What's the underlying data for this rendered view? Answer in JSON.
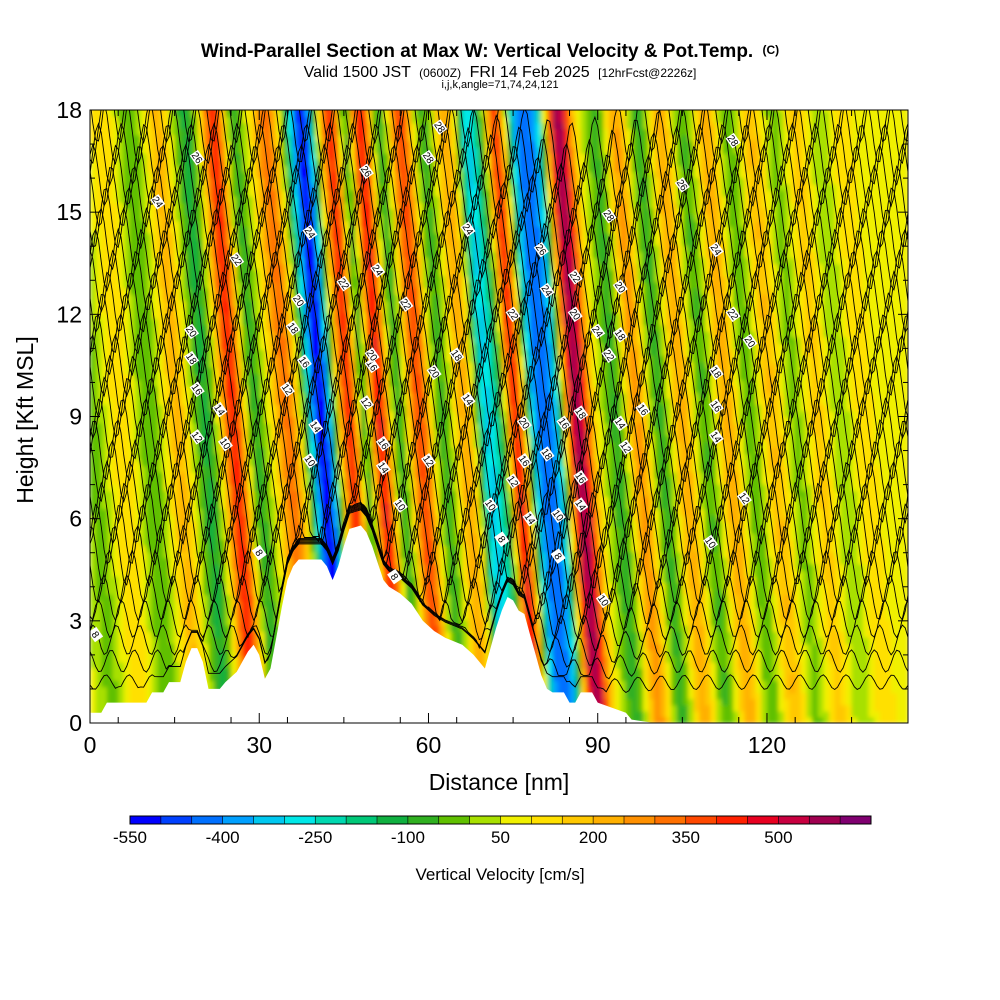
{
  "title": {
    "main": "Wind-Parallel Section at Max W: Vertical Velocity & Pot.Temp.",
    "main_units": "(C)",
    "valid_prefix": "Valid 1500 JST",
    "valid_utc": "(0600Z)",
    "valid_date": "FRI 14 Feb 2025",
    "forecast": "[12hrFcst@2226z]",
    "indices": "i,j,k,angle=71,74,24,121"
  },
  "chart_data": {
    "type": "heatmap",
    "xlabel": "Distance [nm]",
    "ylabel": "Height [Kft MSL]",
    "xlim": [
      0,
      145
    ],
    "ylim": [
      0,
      18
    ],
    "x_ticks": [
      0,
      30,
      60,
      90,
      120
    ],
    "y_ticks": [
      0,
      3,
      6,
      9,
      12,
      15,
      18
    ],
    "grid": false,
    "colorbar": {
      "label": "Vertical Velocity [cm/s]",
      "placement": "bottom",
      "min": -550,
      "max": 650,
      "step": 50,
      "tick_labels": [
        -550,
        -400,
        -250,
        -100,
        50,
        200,
        350,
        500
      ],
      "colors": [
        "#0000ff",
        "#0040ff",
        "#0070ff",
        "#00a0ff",
        "#00c8f0",
        "#00e8e8",
        "#00d8b0",
        "#00c878",
        "#10b040",
        "#30b020",
        "#60c000",
        "#a8e000",
        "#f0f000",
        "#ffe000",
        "#ffc800",
        "#ffb000",
        "#ff9000",
        "#ff7000",
        "#ff4800",
        "#ff2000",
        "#e80020",
        "#c80040",
        "#a00050",
        "#800070"
      ]
    },
    "theta_contours": {
      "field": "Potential temperature (C)",
      "levels": [
        8,
        10,
        12,
        14,
        16,
        18,
        20,
        22,
        24,
        26,
        28
      ],
      "labels": [
        {
          "value": "8",
          "x": 1,
          "y": 2.6
        },
        {
          "value": "8",
          "x": 30,
          "y": 5.0
        },
        {
          "value": "8",
          "x": 54,
          "y": 4.3
        },
        {
          "value": "8",
          "x": 73,
          "y": 5.4
        },
        {
          "value": "8",
          "x": 83,
          "y": 4.9
        },
        {
          "value": "10",
          "x": 24,
          "y": 8.2
        },
        {
          "value": "10",
          "x": 39,
          "y": 7.7
        },
        {
          "value": "10",
          "x": 55,
          "y": 6.4
        },
        {
          "value": "10",
          "x": 71,
          "y": 6.4
        },
        {
          "value": "10",
          "x": 83,
          "y": 6.1
        },
        {
          "value": "10",
          "x": 91,
          "y": 3.6
        },
        {
          "value": "10",
          "x": 110,
          "y": 5.3
        },
        {
          "value": "12",
          "x": 19,
          "y": 8.4
        },
        {
          "value": "12",
          "x": 35,
          "y": 9.8
        },
        {
          "value": "12",
          "x": 49,
          "y": 9.4
        },
        {
          "value": "12",
          "x": 60,
          "y": 7.7
        },
        {
          "value": "12",
          "x": 75,
          "y": 7.1
        },
        {
          "value": "12",
          "x": 95,
          "y": 8.1
        },
        {
          "value": "12",
          "x": 116,
          "y": 6.6
        },
        {
          "value": "14",
          "x": 23,
          "y": 9.2
        },
        {
          "value": "14",
          "x": 40,
          "y": 8.7
        },
        {
          "value": "14",
          "x": 52,
          "y": 7.5
        },
        {
          "value": "14",
          "x": 67,
          "y": 9.5
        },
        {
          "value": "14",
          "x": 78,
          "y": 6.0
        },
        {
          "value": "14",
          "x": 87,
          "y": 6.4
        },
        {
          "value": "14",
          "x": 94,
          "y": 8.8
        },
        {
          "value": "14",
          "x": 111,
          "y": 8.4
        },
        {
          "value": "16",
          "x": 19,
          "y": 9.8
        },
        {
          "value": "16",
          "x": 38,
          "y": 10.6
        },
        {
          "value": "16",
          "x": 50,
          "y": 10.5
        },
        {
          "value": "16",
          "x": 52,
          "y": 8.2
        },
        {
          "value": "16",
          "x": 77,
          "y": 7.7
        },
        {
          "value": "16",
          "x": 84,
          "y": 8.8
        },
        {
          "value": "16",
          "x": 87,
          "y": 7.2
        },
        {
          "value": "16",
          "x": 98,
          "y": 9.2
        },
        {
          "value": "16",
          "x": 111,
          "y": 9.3
        },
        {
          "value": "18",
          "x": 18,
          "y": 10.7
        },
        {
          "value": "18",
          "x": 36,
          "y": 11.6
        },
        {
          "value": "18",
          "x": 65,
          "y": 10.8
        },
        {
          "value": "18",
          "x": 81,
          "y": 7.9
        },
        {
          "value": "18",
          "x": 87,
          "y": 9.1
        },
        {
          "value": "18",
          "x": 94,
          "y": 11.4
        },
        {
          "value": "18",
          "x": 111,
          "y": 10.3
        },
        {
          "value": "20",
          "x": 18,
          "y": 11.5
        },
        {
          "value": "20",
          "x": 37,
          "y": 12.4
        },
        {
          "value": "20",
          "x": 50,
          "y": 10.8
        },
        {
          "value": "20",
          "x": 61,
          "y": 10.3
        },
        {
          "value": "20",
          "x": 77,
          "y": 8.8
        },
        {
          "value": "20",
          "x": 86,
          "y": 12.0
        },
        {
          "value": "20",
          "x": 94,
          "y": 12.8
        },
        {
          "value": "20",
          "x": 117,
          "y": 11.2
        },
        {
          "value": "22",
          "x": 26,
          "y": 13.6
        },
        {
          "value": "22",
          "x": 45,
          "y": 12.9
        },
        {
          "value": "22",
          "x": 56,
          "y": 12.3
        },
        {
          "value": "22",
          "x": 75,
          "y": 12.0
        },
        {
          "value": "22",
          "x": 86,
          "y": 13.1
        },
        {
          "value": "22",
          "x": 92,
          "y": 10.8
        },
        {
          "value": "22",
          "x": 114,
          "y": 12.0
        },
        {
          "value": "24",
          "x": 12,
          "y": 15.3
        },
        {
          "value": "24",
          "x": 39,
          "y": 14.4
        },
        {
          "value": "24",
          "x": 51,
          "y": 13.3
        },
        {
          "value": "24",
          "x": 67,
          "y": 14.5
        },
        {
          "value": "24",
          "x": 81,
          "y": 12.7
        },
        {
          "value": "24",
          "x": 90,
          "y": 11.5
        },
        {
          "value": "24",
          "x": 111,
          "y": 13.9
        },
        {
          "value": "26",
          "x": 19,
          "y": 16.6
        },
        {
          "value": "26",
          "x": 49,
          "y": 16.2
        },
        {
          "value": "26",
          "x": 80,
          "y": 13.9
        },
        {
          "value": "26",
          "x": 105,
          "y": 15.8
        },
        {
          "value": "28",
          "x": 62,
          "y": 17.5
        },
        {
          "value": "28",
          "x": 60,
          "y": 16.6
        },
        {
          "value": "28",
          "x": 92,
          "y": 14.9
        },
        {
          "value": "28",
          "x": 114,
          "y": 17.1
        }
      ]
    }
  }
}
